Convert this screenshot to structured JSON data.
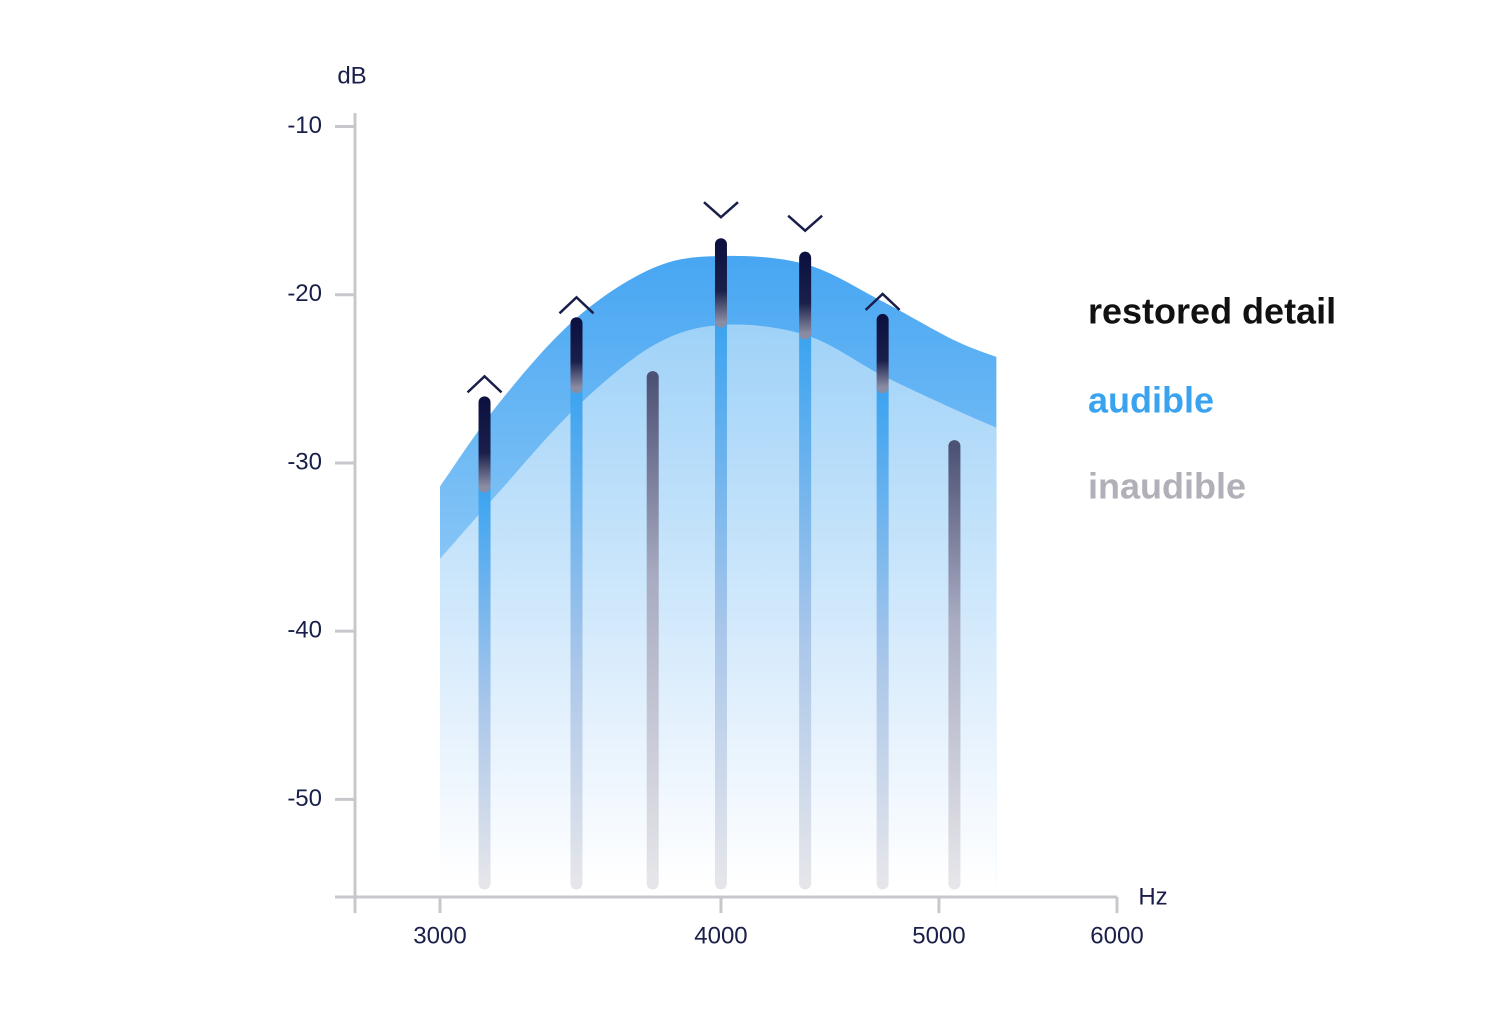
{
  "chart_data": {
    "type": "stem",
    "y_label": "dB",
    "x_label": "Hz",
    "xscale": "log",
    "xlim": [
      2750,
      6000
    ],
    "xticks": [
      3000,
      4000,
      5000,
      6000
    ],
    "ylim": [
      -55.8,
      -9.2
    ],
    "yticks": [
      -10,
      -20,
      -30,
      -40,
      -50
    ],
    "x": [
      3140,
      3450,
      3730,
      4000,
      4360,
      4720,
      5080
    ],
    "stem_bottom": -55,
    "series": [
      {
        "name": "restored detail",
        "color": "#0d1140",
        "values": [
          -26.4,
          -21.7,
          null,
          -17.0,
          -17.8,
          -21.5,
          null
        ]
      },
      {
        "name": "audible",
        "color": "#3aa3f0",
        "values": [
          -31.4,
          -25.5,
          null,
          -21.6,
          -22.3,
          -25.5,
          null
        ]
      },
      {
        "name": "inaudible",
        "color": "#b0b0b8",
        "values": [
          null,
          null,
          -24.9,
          null,
          null,
          null,
          -29.0
        ]
      }
    ],
    "markers": [
      "up",
      "up",
      null,
      "down",
      "down",
      "up",
      null
    ],
    "band": {
      "x": [
        3000,
        3193,
        3449,
        3734,
        4004,
        4364,
        4719,
        5078,
        5303
      ],
      "upper": [
        -31.4,
        -26.3,
        -21.4,
        -18.4,
        -17.7,
        -18.2,
        -20.4,
        -22.7,
        -23.7
      ],
      "lower": [
        -35.7,
        -31.6,
        -26.7,
        -23.0,
        -21.8,
        -22.4,
        -24.8,
        -26.8,
        -27.9
      ]
    }
  }
}
